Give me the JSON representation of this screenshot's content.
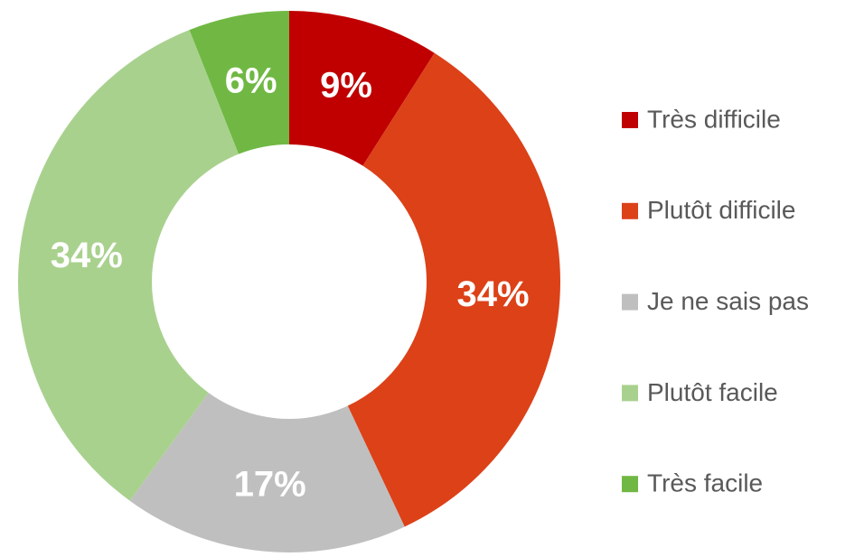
{
  "chart_data": {
    "type": "donut",
    "categories": [
      "Très difficile",
      "Plutôt difficile",
      "Je ne sais pas",
      "Plutôt facile",
      "Très facile"
    ],
    "values": [
      9,
      34,
      17,
      34,
      6
    ],
    "value_labels": [
      "9%",
      "34%",
      "17%",
      "34%",
      "6%"
    ],
    "colors": [
      "#c00000",
      "#dc4118",
      "#bfbfbf",
      "#a9d18e",
      "#70b843"
    ],
    "legend": "right"
  }
}
